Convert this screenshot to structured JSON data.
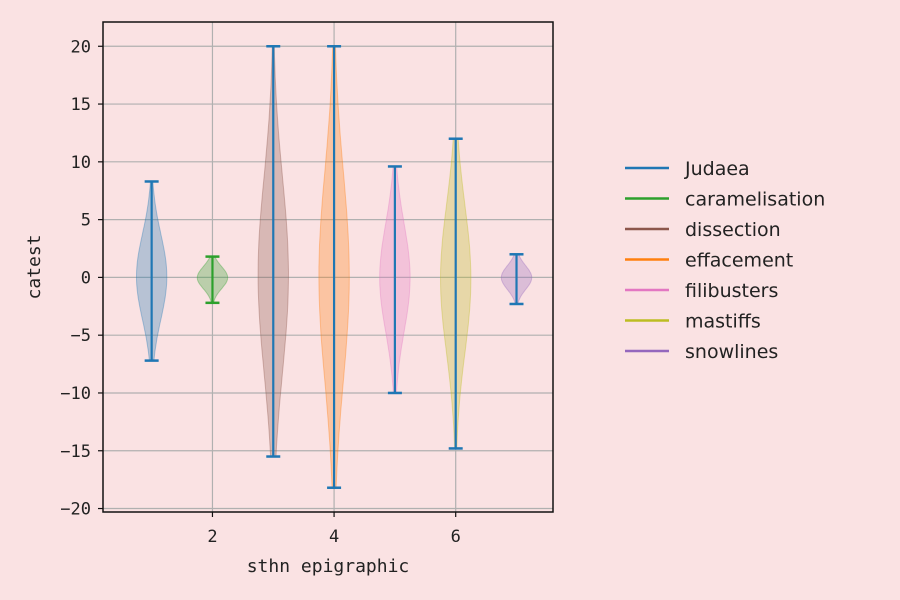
{
  "chart_data": {
    "type": "violin",
    "xlabel": "sthn epigraphic",
    "ylabel": "catest",
    "xlim": [
      0.2,
      7.6
    ],
    "ylim": [
      -20.3,
      22.1
    ],
    "xticks": [
      2,
      4,
      6
    ],
    "yticks": [
      20,
      15,
      10,
      5,
      0,
      -5,
      -10,
      -15,
      -20
    ],
    "ytick_labels": [
      "20",
      "15",
      "10",
      "5",
      "0",
      "−5",
      "−10",
      "−15",
      "−20"
    ],
    "grid": true,
    "legend_position": "right",
    "series": [
      {
        "name": "Judaea",
        "position": 1,
        "min": -7.2,
        "max": 8.3,
        "max_half_width": 0.25,
        "body_color": "#1f77b4",
        "line_color": "#1f77b4"
      },
      {
        "name": "caramelisation",
        "position": 2,
        "min": -2.2,
        "max": 1.8,
        "max_half_width": 0.25,
        "body_color": "#2ca02c",
        "line_color": "#2ca02c"
      },
      {
        "name": "dissection",
        "position": 3,
        "min": -15.5,
        "max": 20.0,
        "max_half_width": 0.25,
        "body_color": "#8c564b",
        "line_color": "#1f77b4"
      },
      {
        "name": "effacement",
        "position": 4,
        "min": -18.2,
        "max": 20.0,
        "max_half_width": 0.25,
        "body_color": "#ff7f0e",
        "line_color": "#1f77b4"
      },
      {
        "name": "filibusters",
        "position": 5,
        "min": -10.0,
        "max": 9.6,
        "max_half_width": 0.25,
        "body_color": "#e377c2",
        "line_color": "#1f77b4"
      },
      {
        "name": "mastiffs",
        "position": 6,
        "min": -14.8,
        "max": 12.0,
        "max_half_width": 0.25,
        "body_color": "#bcbd22",
        "line_color": "#1f77b4"
      },
      {
        "name": "snowlines",
        "position": 7,
        "min": -2.3,
        "max": 2.0,
        "max_half_width": 0.25,
        "body_color": "#9467bd",
        "line_color": "#1f77b4"
      }
    ],
    "legend": [
      {
        "name": "Judaea",
        "color": "#1f77b4"
      },
      {
        "name": "caramelisation",
        "color": "#2ca02c"
      },
      {
        "name": "dissection",
        "color": "#8c564b"
      },
      {
        "name": "effacement",
        "color": "#ff7f0e"
      },
      {
        "name": "filibusters",
        "color": "#e377c2"
      },
      {
        "name": "mastiffs",
        "color": "#bcbd22"
      },
      {
        "name": "snowlines",
        "color": "#9467bd"
      }
    ]
  }
}
